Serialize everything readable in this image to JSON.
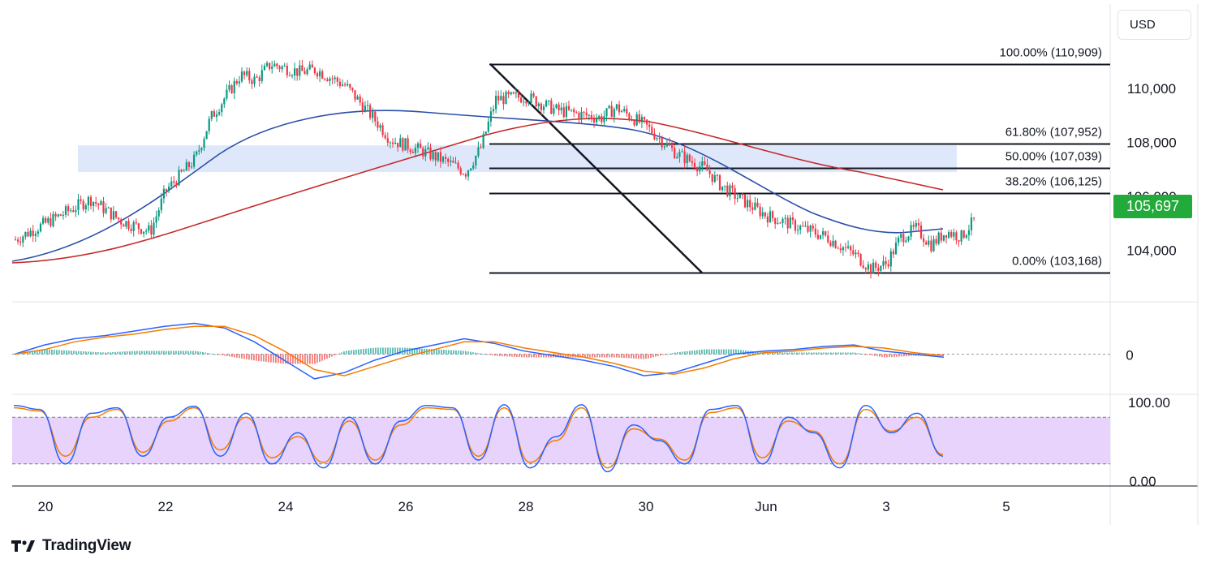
{
  "header": {
    "currency": "USD"
  },
  "brand": {
    "name": "TradingView"
  },
  "colors": {
    "up": "#089981",
    "down": "#f23645",
    "sma_fast": "#2a4fa8",
    "sma_slow": "#c62828",
    "zone": "#dce5fb",
    "macd": "#2962ff",
    "signal": "#f57c00",
    "stoch_band": "#e7d3fb",
    "price_tag": "#22ab3a"
  },
  "price_scale": {
    "ticks": [
      "110,000",
      "108,000",
      "106,000",
      "104,000"
    ],
    "current": "105,697"
  },
  "macd_scale": {
    "ticks": [
      "0"
    ]
  },
  "stoch_scale": {
    "ticks": [
      "100.00",
      "0.00"
    ]
  },
  "time_axis": {
    "labels": [
      "20",
      "22",
      "24",
      "26",
      "28",
      "30",
      "Jun",
      "3",
      "5"
    ]
  },
  "chart_data": [
    {
      "type": "line",
      "title": "",
      "x": [
        "2025-05-19T12:00",
        "2025-05-20T06:00",
        "2025-05-20T18:00",
        "2025-05-21T06:00",
        "2025-05-21T18:00",
        "2025-05-22T00:00",
        "2025-05-22T12:00",
        "2025-05-22T18:00",
        "2025-05-23T06:00",
        "2025-05-23T12:00",
        "2025-05-23T18:00",
        "2025-05-24T06:00",
        "2025-05-24T12:00",
        "2025-05-25T00:00",
        "2025-05-25T12:00",
        "2025-05-25T18:00",
        "2025-05-26T06:00",
        "2025-05-26T18:00",
        "2025-05-27T00:00",
        "2025-05-27T06:00",
        "2025-05-27T12:00",
        "2025-05-28T00:00",
        "2025-05-28T12:00",
        "2025-05-29T00:00",
        "2025-05-29T06:00",
        "2025-05-29T12:00",
        "2025-05-30T00:00",
        "2025-05-30T12:00",
        "2025-05-31T00:00",
        "2025-05-31T06:00",
        "2025-05-31T12:00",
        "2025-06-01T00:00",
        "2025-06-01T12:00",
        "2025-06-02T00:00",
        "2025-06-02T12:00",
        "2025-06-02T18:00",
        "2025-06-03T00:00",
        "2025-06-03T06:00",
        "2025-06-03T12:00",
        "2025-06-03T18:00",
        "2025-06-04T00:00",
        "2025-06-04T06:00",
        "2025-06-04T12:00"
      ],
      "series": [
        {
          "values": [
            104400,
            105300,
            105900,
            105100,
            104700,
            106200,
            107400,
            108900,
            110500,
            110300,
            110900,
            110600,
            110700,
            110100,
            108800,
            108100,
            107700,
            107200,
            106900,
            107800,
            109600,
            109700,
            109200,
            109000,
            108900,
            109300,
            108600,
            107600,
            107000,
            106400,
            106000,
            105300,
            104900,
            104500,
            103800,
            103300,
            103500,
            104500,
            104800,
            104200,
            104700,
            104500,
            105200
          ]
        }
      ],
      "annotations": [
        {
          "type": "fibonacci_retracement",
          "levels": [
            {
              "label": "100.00% (110,909)",
              "value": 110909
            },
            {
              "label": "61.80% (107,952)",
              "value": 107952
            },
            {
              "label": "50.00% (107,039)",
              "value": 107039
            },
            {
              "label": "38.20% (106,125)",
              "value": 106125
            },
            {
              "label": "0.00% (103,168)",
              "value": 103168
            }
          ]
        },
        {
          "type": "support_resistance_zone",
          "from": 106900,
          "to": 107350
        }
      ],
      "ylim": [
        102500,
        112500
      ],
      "grid": false
    },
    {
      "type": "line",
      "title": "",
      "series": [
        {
          "values": [
            0,
            0.3,
            0.5,
            0.6,
            0.75,
            0.9,
            1.0,
            0.85,
            0.4,
            -0.2,
            -0.8,
            -0.6,
            -0.2,
            0.1,
            0.3,
            0.5,
            0.35,
            0.1,
            -0.05,
            -0.2,
            -0.4,
            -0.7,
            -0.6,
            -0.3,
            0,
            0.1,
            0.15,
            0.25,
            0.3,
            0.1,
            0,
            -0.1
          ]
        },
        {
          "values": [
            0,
            0.15,
            0.4,
            0.55,
            0.65,
            0.8,
            0.9,
            0.9,
            0.6,
            0.1,
            -0.5,
            -0.7,
            -0.4,
            -0.1,
            0.15,
            0.4,
            0.4,
            0.2,
            0.05,
            -0.1,
            -0.3,
            -0.55,
            -0.65,
            -0.45,
            -0.15,
            0.05,
            0.1,
            0.2,
            0.25,
            0.2,
            0.05,
            -0.05
          ]
        }
      ],
      "yticks": [
        "0"
      ],
      "grid": false
    },
    {
      "type": "line",
      "title": "",
      "series": [
        {
          "values": [
            95,
            90,
            20,
            85,
            92,
            30,
            80,
            94,
            30,
            85,
            20,
            60,
            15,
            80,
            20,
            75,
            95,
            92,
            25,
            96,
            15,
            55,
            96,
            10,
            70,
            50,
            20,
            90,
            95,
            20,
            80,
            60,
            15,
            95,
            60,
            85,
            30
          ]
        },
        {
          "values": [
            92,
            88,
            30,
            80,
            90,
            35,
            75,
            92,
            38,
            80,
            28,
            55,
            22,
            75,
            25,
            70,
            92,
            90,
            30,
            92,
            22,
            50,
            92,
            15,
            65,
            52,
            25,
            86,
            92,
            28,
            75,
            62,
            20,
            90,
            62,
            80,
            32
          ]
        }
      ],
      "band": [
        20,
        80
      ],
      "yticks": [
        "100.00",
        "0.00"
      ],
      "ylim": [
        0,
        100
      ],
      "grid": false
    }
  ]
}
